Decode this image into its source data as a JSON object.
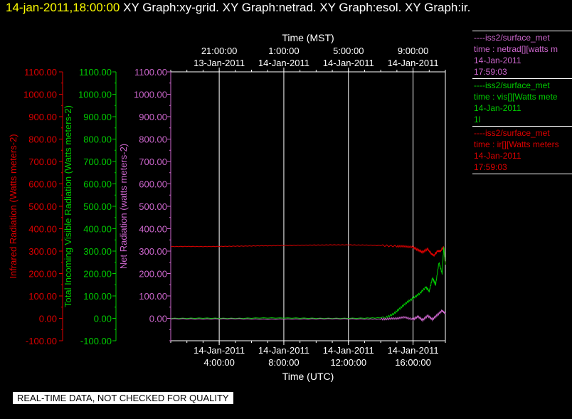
{
  "header": {
    "timestamp": "14-jan-2011,18:00:00",
    "graphs": "XY Graph:xy-grid.  XY Graph:netrad.  XY Graph:esol.  XY Graph:ir."
  },
  "footer": {
    "notice": "REAL-TIME DATA, NOT CHECKED FOR QUALITY"
  },
  "legend": [
    {
      "source": "----iss2/surface_met",
      "desc": "time : netrad[][watts m",
      "date": "14-Jan-2011",
      "time": "17:59:03",
      "color": "#cc66cc"
    },
    {
      "source": "----iss2/surface_met",
      "desc": "time : vis[][Watts mete",
      "date": "14-Jan-2011",
      "time": "1l",
      "color": "#00cc00"
    },
    {
      "source": "----iss2/surface_met",
      "desc": "time : ir[][Watts meters",
      "date": "14-Jan-2011",
      "time": "17:59:03",
      "color": "#dd0000"
    }
  ],
  "colors": {
    "background": "#000000",
    "ir": "#dd0000",
    "vis": "#00cc00",
    "netrad": "#cc66cc",
    "grid": "#ffffff",
    "text": "#ffffff",
    "timestamp": "#ffff00"
  },
  "chart_data": {
    "type": "line",
    "x_unit": "hours UTC, 14-Jan-2011",
    "xlim": [
      1,
      18
    ],
    "ylim": [
      -100,
      1100
    ],
    "grid": true,
    "top_axis": {
      "label": "Time (MST)",
      "ticks": [
        {
          "x": 4,
          "line1": "21:00:00",
          "line2": "13-Jan-2011"
        },
        {
          "x": 8,
          "line1": "1:00:00",
          "line2": "14-Jan-2011"
        },
        {
          "x": 12,
          "line1": "5:00:00",
          "line2": "14-Jan-2011"
        },
        {
          "x": 16,
          "line1": "9:00:00",
          "line2": "14-Jan-2011"
        }
      ]
    },
    "bottom_axis": {
      "label": "Time (UTC)",
      "ticks": [
        {
          "x": 4,
          "line1": "14-Jan-2011",
          "line2": "4:00:00"
        },
        {
          "x": 8,
          "line1": "14-Jan-2011",
          "line2": "8:00:00"
        },
        {
          "x": 12,
          "line1": "14-Jan-2011",
          "line2": "12:00:00"
        },
        {
          "x": 16,
          "line1": "14-Jan-2011",
          "line2": "16:00:00"
        }
      ]
    },
    "y_axes": [
      {
        "label": "Infrared Radiation (Watts meters-2)",
        "ticks": [
          "1100.00",
          "1000.00",
          "900.00",
          "800.00",
          "700.00",
          "600.00",
          "500.00",
          "400.00",
          "300.00",
          "200.00",
          "100.00",
          "0.00",
          "-100.00"
        ],
        "color": "#dd0000"
      },
      {
        "label": "Total Incoming Visible Radiation (Watts meters-2)",
        "ticks": [
          "1100.00",
          "1000.00",
          "900.00",
          "800.00",
          "700.00",
          "600.00",
          "500.00",
          "400.00",
          "300.00",
          "200.00",
          "100.00",
          "0.00",
          "-100.00"
        ],
        "color": "#00cc00"
      },
      {
        "label": "Net Radiation (watts meters-2)",
        "ticks": [
          "1100.00",
          "1000.00",
          "900.00",
          "800.00",
          "700.00",
          "600.00",
          "500.00",
          "400.00",
          "300.00",
          "200.00",
          "100.00",
          "0.00"
        ],
        "color": "#cc66cc"
      }
    ],
    "series": [
      {
        "key": "ir",
        "x": [
          1.0,
          2.0,
          3.0,
          4.0,
          5.0,
          6.0,
          7.0,
          8.0,
          9.0,
          10.0,
          11.0,
          12.0,
          13.0,
          14.0,
          15.0,
          15.5,
          16.0,
          16.3,
          16.6,
          16.9,
          17.1,
          17.3,
          17.5,
          17.7,
          17.9,
          18.0
        ],
        "y": [
          320,
          321,
          320,
          321,
          322,
          323,
          324,
          325,
          326,
          327,
          328,
          328,
          327,
          325,
          322,
          321,
          318,
          305,
          295,
          310,
          290,
          280,
          300,
          300,
          320,
          240
        ]
      },
      {
        "key": "vis",
        "x": [
          1.0,
          3.0,
          5.0,
          7.0,
          9.0,
          11.0,
          13.0,
          14.3,
          14.8,
          15.2,
          15.6,
          16.0,
          16.4,
          16.8,
          17.0,
          17.2,
          17.4,
          17.6,
          17.8,
          17.9,
          18.0
        ],
        "y": [
          0,
          1,
          0,
          2,
          1,
          0,
          1,
          3,
          20,
          45,
          70,
          90,
          110,
          140,
          120,
          180,
          150,
          250,
          200,
          320,
          240
        ]
      },
      {
        "key": "netrad",
        "x": [
          1.0,
          3.0,
          5.0,
          7.0,
          9.0,
          11.0,
          13.0,
          14.0,
          14.5,
          15.0,
          15.5,
          16.0,
          16.3,
          16.6,
          16.9,
          17.2,
          17.5,
          17.8,
          18.0
        ],
        "y": [
          -2,
          -3,
          -2,
          -4,
          -3,
          -2,
          -3,
          -4,
          -2,
          0,
          5,
          -5,
          8,
          -8,
          12,
          -5,
          15,
          35,
          20
        ]
      }
    ]
  }
}
